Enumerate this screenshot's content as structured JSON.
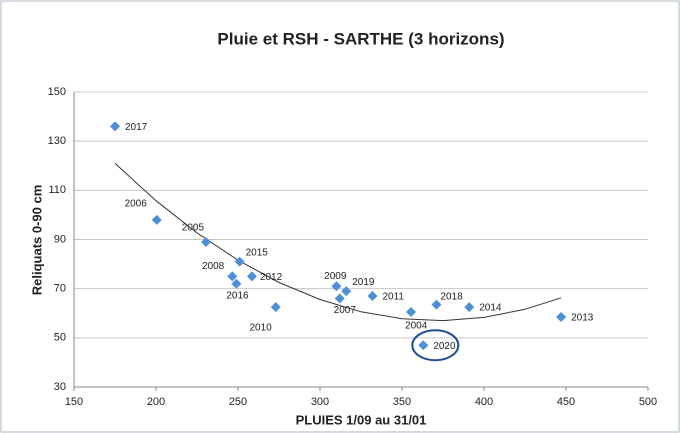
{
  "chart_data": {
    "type": "scatter",
    "title": "Pluie et RSH - SARTHE (3 horizons)",
    "x_label": "PLUIES 1/09 au 31/01",
    "y_label": "Reliquats  0-90 cm",
    "labels": [
      "2017",
      "2006",
      "2005",
      "2015",
      "2008",
      "2012",
      "2016",
      "2010",
      "2009",
      "2007",
      "2019",
      "2011",
      "2004",
      "2020",
      "2018",
      "2014",
      "2013"
    ],
    "x": [
      175,
      200.5,
      230.5,
      251,
      246.5,
      258.5,
      249,
      273,
      310,
      312,
      316,
      332,
      355.5,
      363,
      371,
      391,
      447
    ],
    "y": [
      136,
      98,
      89,
      81,
      75,
      75,
      72,
      62.5,
      71,
      66,
      69,
      67,
      60.5,
      47,
      63.5,
      62.5,
      58.5
    ],
    "color": "#4f8fd6",
    "trendline": {
      "x": [
        175,
        200,
        225,
        250,
        275,
        300,
        325,
        350,
        375,
        400,
        425,
        447
      ],
      "y": [
        121,
        105.8,
        92.7,
        81.6,
        72.5,
        65.6,
        60.6,
        57.8,
        57,
        58.3,
        61.6,
        66.3
      ]
    },
    "xlim": [
      150,
      500
    ],
    "xticks": [
      150,
      200,
      250,
      300,
      350,
      400,
      450,
      500
    ],
    "ylim": [
      30,
      150
    ],
    "yticks": [
      30,
      50,
      70,
      90,
      110,
      130,
      150
    ],
    "grid": true
  }
}
